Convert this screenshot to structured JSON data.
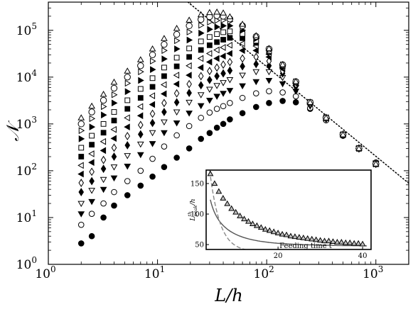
{
  "chart_data": [
    {
      "type": "scatter",
      "xlabel": "L/h",
      "ylabel": "𝒩",
      "xscale": "log",
      "yscale": "log",
      "xlim": [
        1,
        2000
      ],
      "ylim": [
        1,
        400000
      ],
      "xticks": [
        {
          "value": 1,
          "base": "10",
          "exp": "0"
        },
        {
          "value": 10,
          "base": "10",
          "exp": "1"
        },
        {
          "value": 100,
          "base": "10",
          "exp": "2"
        },
        {
          "value": 1000,
          "base": "10",
          "exp": "3"
        }
      ],
      "yticks": [
        {
          "value": 1,
          "base": "10",
          "exp": "0"
        },
        {
          "value": 10,
          "base": "10",
          "exp": "1"
        },
        {
          "value": 100,
          "base": "10",
          "exp": "2"
        },
        {
          "value": 1000,
          "base": "10",
          "exp": "3"
        },
        {
          "value": 10000,
          "base": "10",
          "exp": "4"
        },
        {
          "value": 100000,
          "base": "10",
          "exp": "5"
        }
      ],
      "grid": false,
      "x": [
        2,
        2.5,
        3.2,
        4,
        5.3,
        7,
        9,
        11.5,
        15,
        19.5,
        25,
        30,
        35,
        40,
        46,
        60,
        80,
        105,
        140,
        185,
        250,
        350,
        500,
        700,
        1000
      ],
      "series": [
        {
          "marker": "filled-circle",
          "values": [
            2.8,
            4.0,
            10,
            18,
            30,
            48,
            75,
            120,
            190,
            300,
            480,
            640,
            830,
            1000,
            1250,
            1700,
            2300,
            2800,
            3100,
            2900,
            2100,
            1200,
            560,
            300,
            150
          ]
        },
        {
          "marker": "open-circle",
          "values": [
            7,
            12,
            20,
            35,
            60,
            100,
            180,
            330,
            570,
            900,
            1350,
            1750,
            2100,
            2400,
            2800,
            3600,
            4500,
            5000,
            4700,
            3900,
            2200,
            1200,
            560,
            300,
            150
          ]
        },
        {
          "marker": "filled-triangle-down",
          "values": [
            12,
            22,
            40,
            70,
            125,
            220,
            380,
            650,
            1050,
            1700,
            2450,
            3200,
            3900,
            4500,
            5200,
            6500,
            8000,
            8500,
            7200,
            5000,
            2400,
            1250,
            580,
            300,
            145
          ]
        },
        {
          "marker": "open-triangle-down",
          "values": [
            20,
            38,
            65,
            120,
            210,
            370,
            650,
            1100,
            1800,
            2900,
            4200,
            5500,
            6600,
            7600,
            8800,
            11000,
            13000,
            13000,
            9800,
            6000,
            2500,
            1300,
            580,
            300,
            145
          ]
        },
        {
          "marker": "filled-diamond",
          "values": [
            35,
            60,
            110,
            200,
            350,
            600,
            1050,
            1800,
            2900,
            4600,
            6700,
            8700,
            10500,
            12000,
            13800,
            17000,
            19000,
            17500,
            12000,
            6500,
            2600,
            1300,
            580,
            300,
            140
          ]
        },
        {
          "marker": "open-diamond",
          "values": [
            55,
            95,
            170,
            310,
            550,
            950,
            1650,
            2800,
            4500,
            7100,
            10500,
            13500,
            16000,
            18500,
            21000,
            25000,
            27000,
            22000,
            13500,
            7000,
            2700,
            1350,
            590,
            300,
            140
          ]
        },
        {
          "marker": "filled-triangle-left",
          "values": [
            85,
            150,
            270,
            490,
            860,
            1500,
            2600,
            4400,
            7100,
            11000,
            16000,
            21000,
            25000,
            28000,
            32000,
            37000,
            37000,
            27000,
            15000,
            7300,
            2800,
            1350,
            590,
            300,
            140
          ]
        },
        {
          "marker": "open-triangle-left",
          "values": [
            130,
            230,
            420,
            760,
            1350,
            2350,
            4000,
            6900,
            11000,
            17500,
            25000,
            32000,
            38000,
            43000,
            48000,
            52000,
            46000,
            31000,
            16000,
            7500,
            2800,
            1350,
            590,
            300,
            140
          ]
        },
        {
          "marker": "filled-square",
          "values": [
            200,
            360,
            650,
            1180,
            2100,
            3600,
            6200,
            10500,
            17000,
            27000,
            38000,
            48000,
            56000,
            63000,
            69000,
            68000,
            54000,
            34000,
            17000,
            7700,
            2850,
            1350,
            590,
            300,
            140
          ]
        },
        {
          "marker": "open-square",
          "values": [
            310,
            560,
            1000,
            1800,
            3200,
            5600,
            9500,
            16000,
            26000,
            41000,
            58000,
            72000,
            83000,
            91000,
            95000,
            84000,
            60000,
            36000,
            17500,
            7800,
            2850,
            1350,
            590,
            300,
            140
          ]
        },
        {
          "marker": "filled-triangle-right",
          "values": [
            480,
            860,
            1550,
            2800,
            4900,
            8500,
            14500,
            24500,
            40000,
            62000,
            87000,
            105000,
            118000,
            125000,
            125000,
            100000,
            66000,
            38000,
            18000,
            7900,
            2900,
            1350,
            590,
            300,
            140
          ]
        },
        {
          "marker": "open-triangle-right",
          "values": [
            720,
            1300,
            2350,
            4200,
            7400,
            13000,
            22000,
            37000,
            60000,
            92000,
            128000,
            150000,
            162000,
            165000,
            155000,
            115000,
            70000,
            39000,
            18200,
            8000,
            2900,
            1350,
            590,
            300,
            140
          ]
        },
        {
          "marker": "open-circle-large",
          "values": [
            1000,
            1800,
            3200,
            5800,
            10000,
            17500,
            30000,
            50000,
            82000,
            125000,
            170000,
            195000,
            205000,
            200000,
            175000,
            125000,
            74000,
            40000,
            18400,
            8000,
            2900,
            1350,
            590,
            300,
            140
          ]
        },
        {
          "marker": "open-triangle-up",
          "values": [
            1350,
            2400,
            4300,
            7800,
            13500,
            23500,
            40000,
            67000,
            110000,
            165000,
            215000,
            240000,
            245000,
            235000,
            195000,
            135000,
            77000,
            41000,
            18600,
            8100,
            2900,
            1350,
            590,
            300,
            140
          ]
        }
      ],
      "reference_line": {
        "style": "dotted",
        "x": [
          19,
          2000
        ],
        "y": [
          400000,
          54
        ]
      }
    },
    {
      "type": "scatter",
      "xlabel": "Feeding time t",
      "ylabel": "L^th_peak/h",
      "xlim": [
        3,
        42
      ],
      "ylim": [
        42,
        172
      ],
      "xticks": [
        "20",
        "40"
      ],
      "yticks": [
        "50",
        "100",
        "150"
      ],
      "x": [
        4,
        5,
        6,
        7,
        8,
        9,
        10,
        11,
        12,
        13,
        14,
        15,
        16,
        17,
        18,
        19,
        20,
        21,
        22,
        23,
        24,
        25,
        26,
        27,
        28,
        29,
        30,
        31,
        32,
        33,
        34,
        35,
        36,
        37,
        38,
        39,
        40
      ],
      "series": [
        {
          "marker": "gray-triangle-up",
          "values": [
            166,
            150,
            137,
            126,
            117,
            109,
            103,
            97,
            92,
            88,
            84,
            81,
            78,
            75,
            73,
            71,
            69,
            67,
            66,
            64,
            63,
            62,
            61,
            60,
            59,
            58,
            57,
            56,
            56,
            55,
            54,
            54,
            53,
            53,
            52,
            52,
            51
          ]
        }
      ],
      "fit_solid": {
        "x": [
          4,
          41
        ],
        "a": 0.195,
        "b": 30.5,
        "c": 45.5
      },
      "fit_dashed": {
        "x": [
          3.5,
          13
        ],
        "rate": 0.42,
        "amp": 125,
        "offset": 38
      }
    }
  ]
}
